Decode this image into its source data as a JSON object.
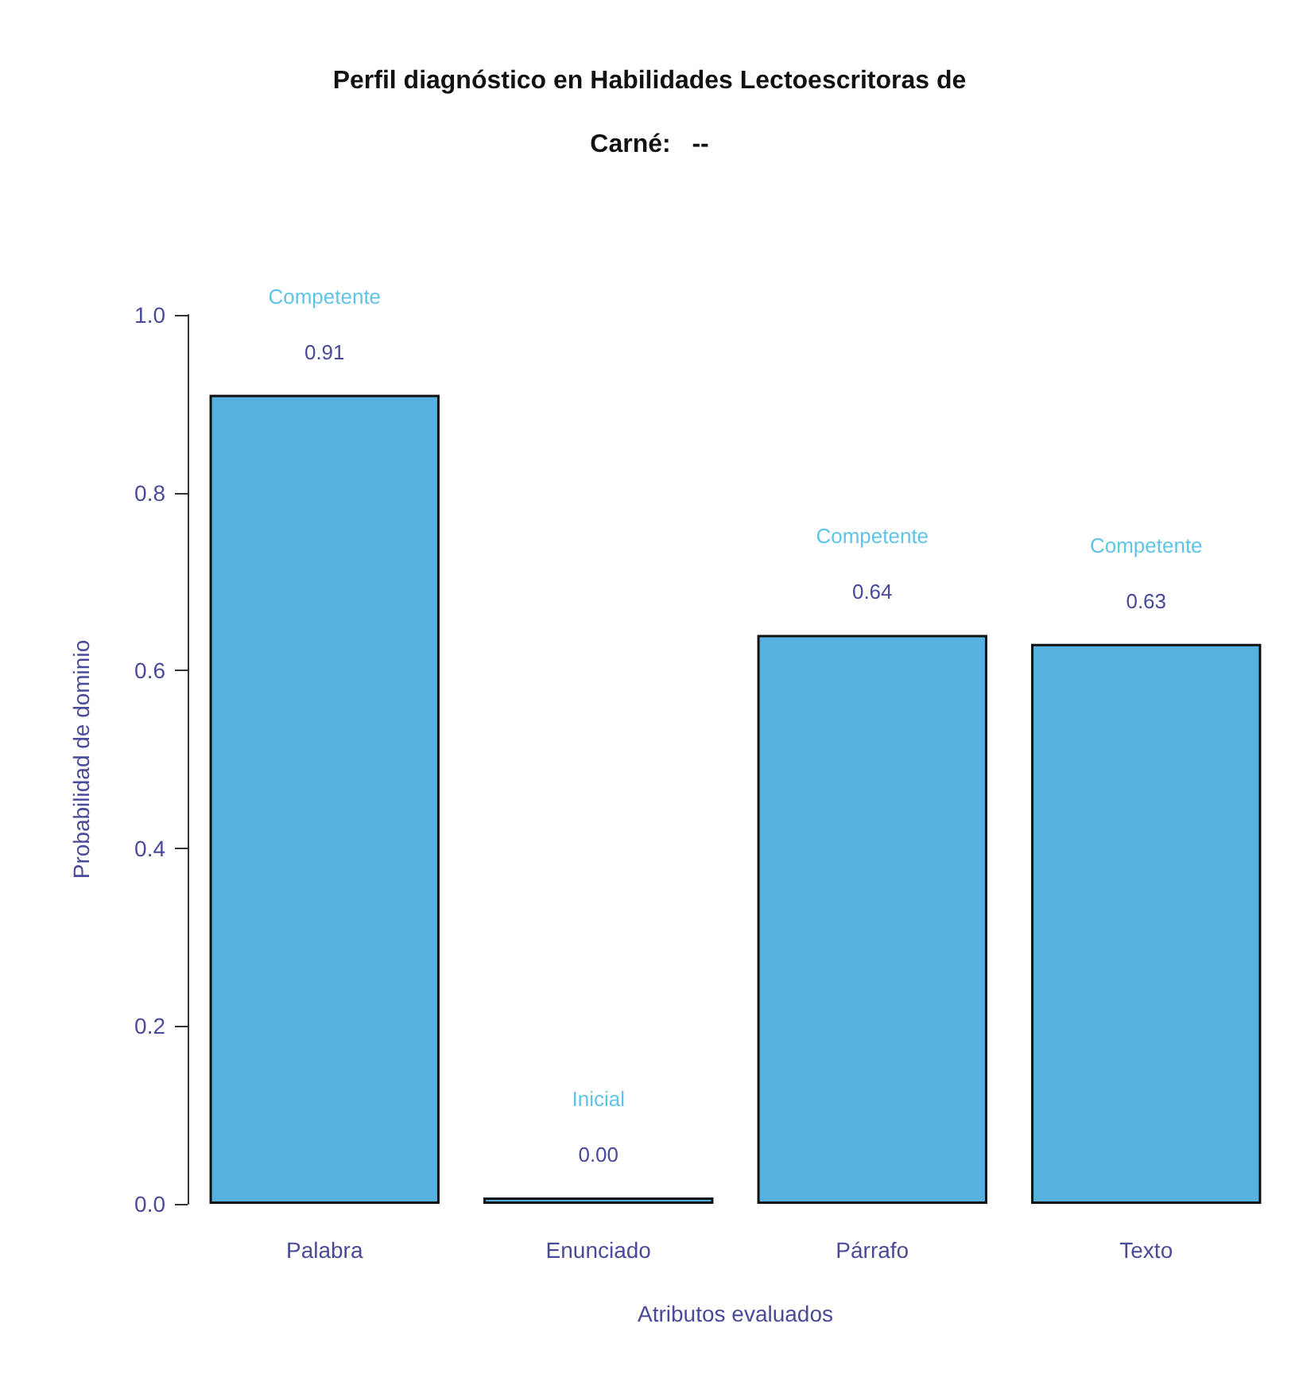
{
  "chart_data": {
    "type": "bar",
    "title": "Perfil diagnóstico en Habilidades Lectoescritoras de",
    "subtitle": "Carné:   --",
    "xlabel": "Atributos evaluados",
    "ylabel": "Probabilidad de dominio",
    "categories": [
      "Palabra",
      "Enunciado",
      "Párrafo",
      "Texto"
    ],
    "values": [
      0.91,
      0.0,
      0.64,
      0.63
    ],
    "value_labels": [
      "0.91",
      "0.00",
      "0.64",
      "0.63"
    ],
    "color": "#56b0e0",
    "annotations": [
      "Competente",
      "Inicial",
      "Competente",
      "Competente"
    ],
    "ylim": [
      0,
      1
    ],
    "yticks": [
      {
        "value": 0,
        "label": "0.0"
      },
      {
        "value": 0.2,
        "label": "0.2"
      },
      {
        "value": 0.4,
        "label": "0.4"
      },
      {
        "value": 0.6,
        "label": "0.6"
      },
      {
        "value": 0.8,
        "label": "0.8"
      },
      {
        "value": 1,
        "label": "1.0"
      }
    ],
    "grid": false
  }
}
